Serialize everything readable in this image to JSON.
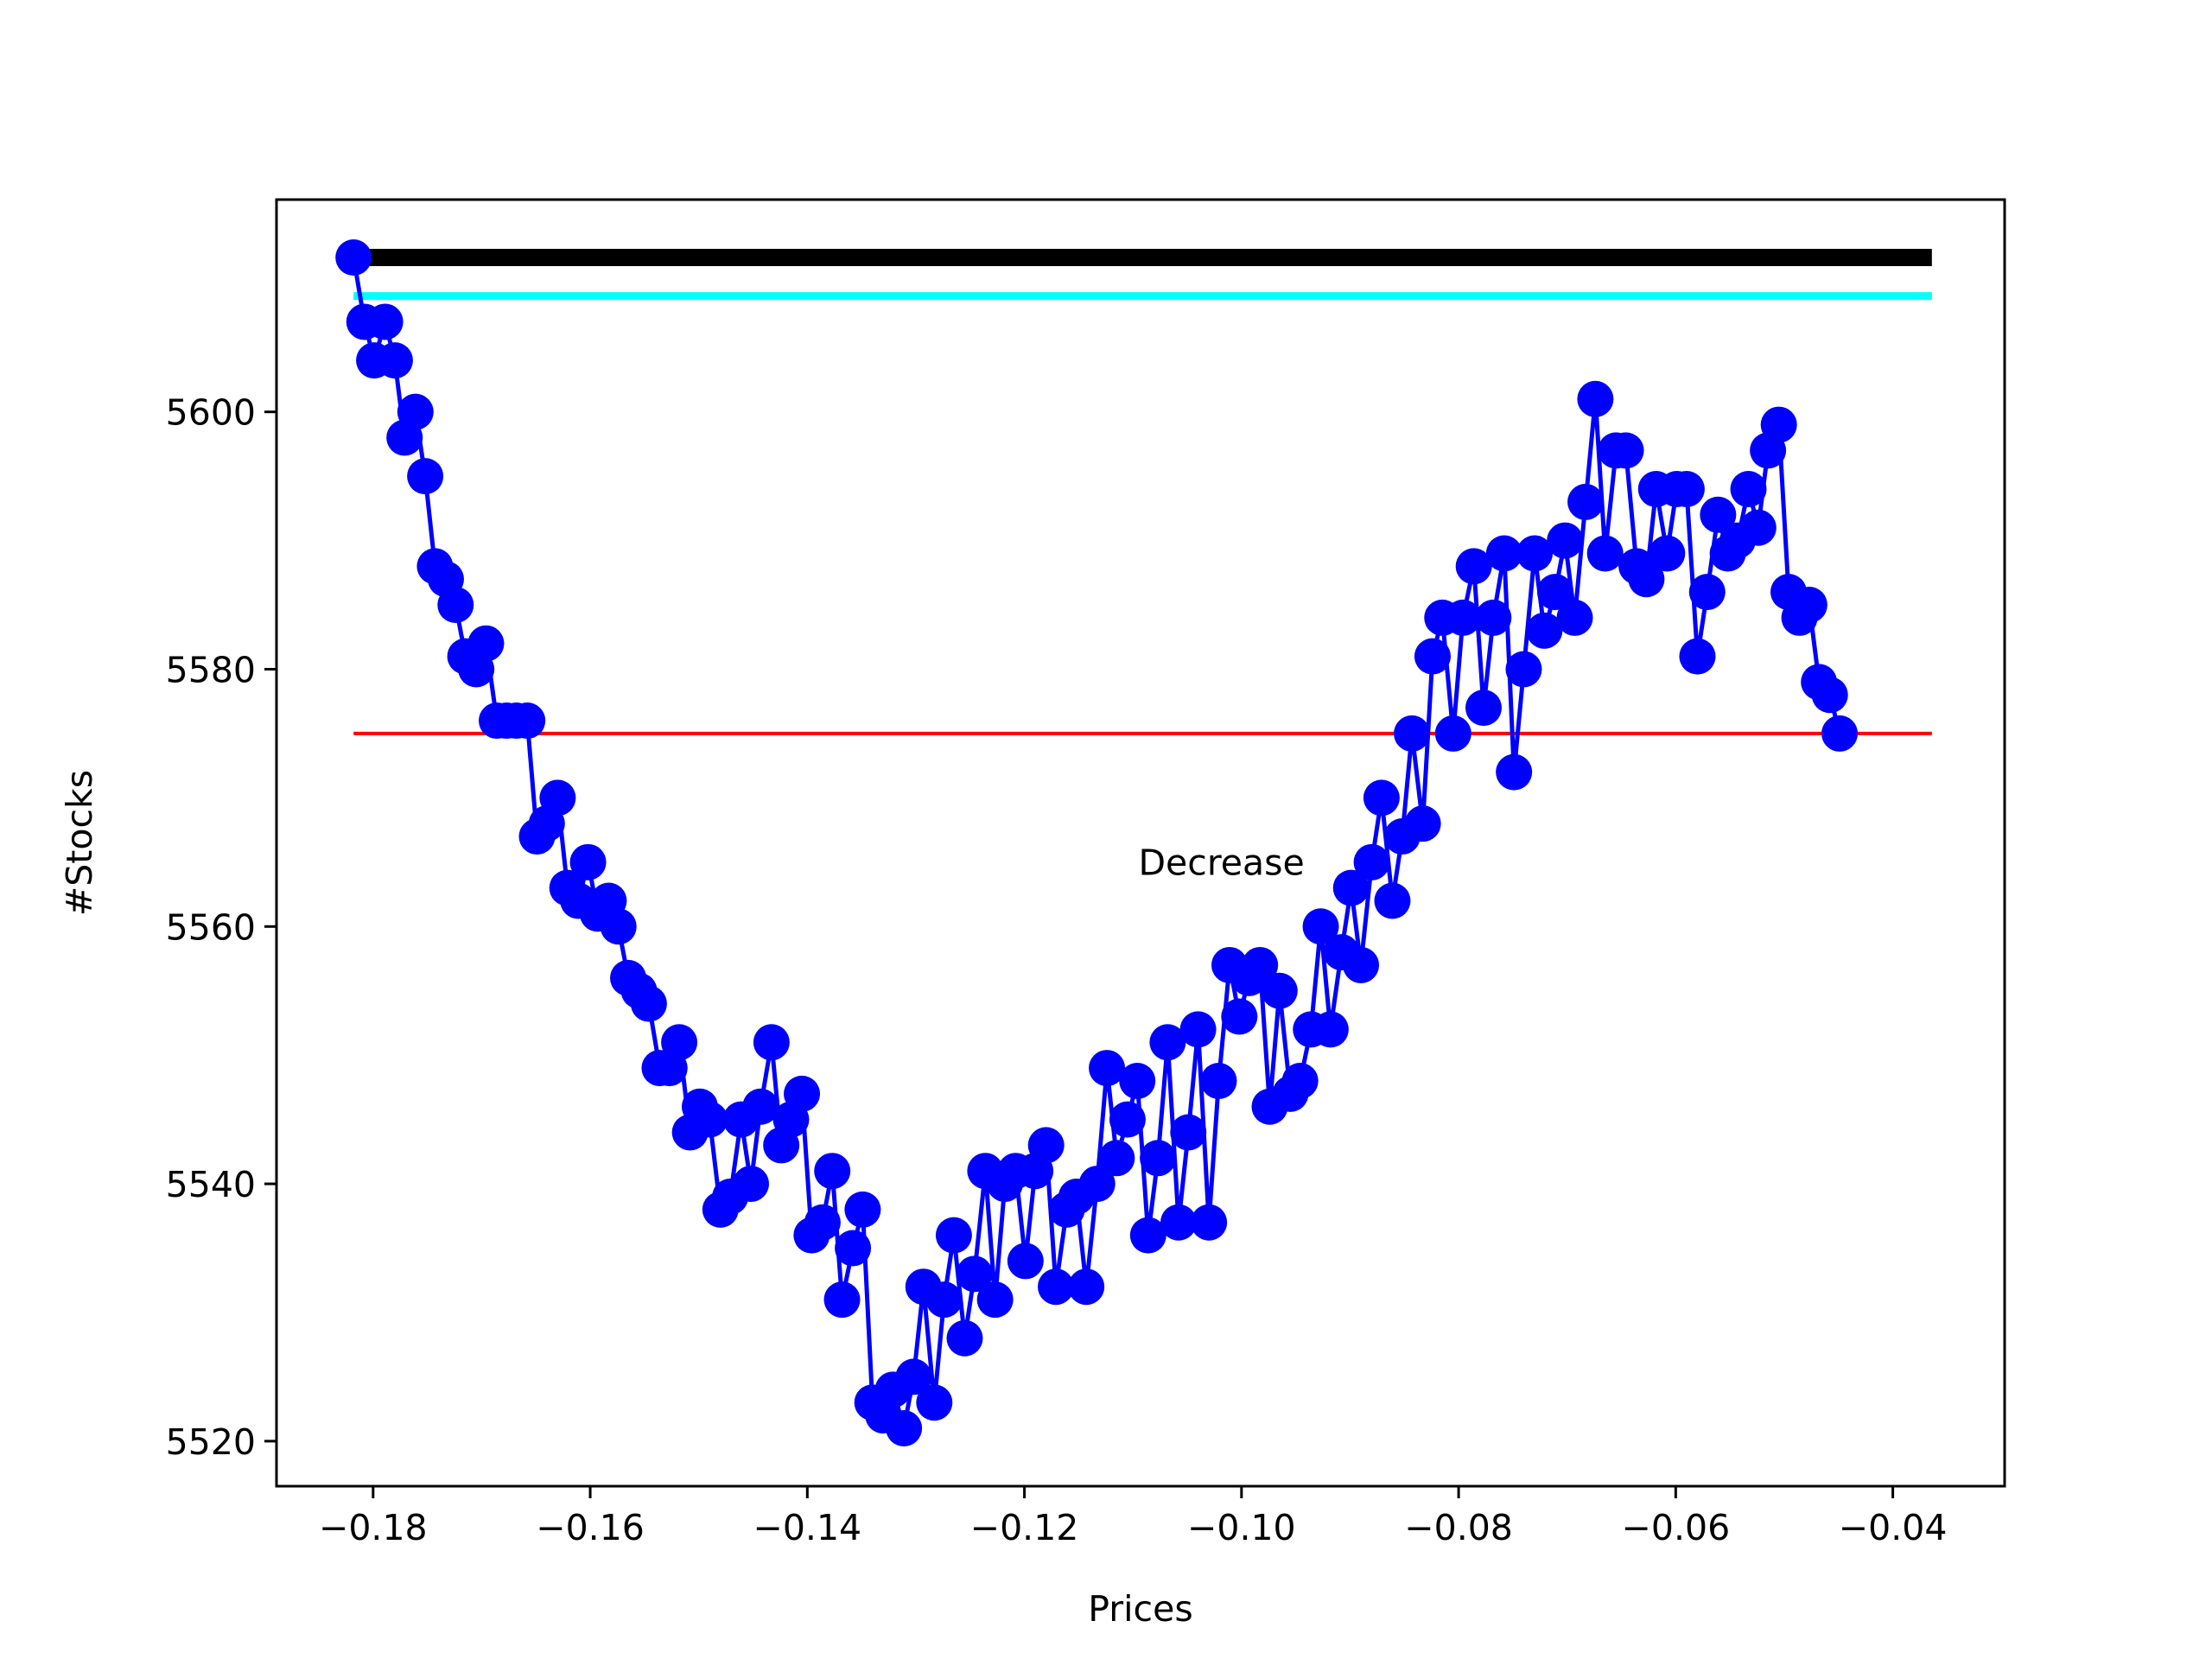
{
  "chart_data": {
    "type": "line",
    "title": "",
    "xlabel": "Prices",
    "ylabel": "#Stocks",
    "xlim": [
      -0.1889,
      -0.0297
    ],
    "ylim": [
      5516.5,
      5616.5
    ],
    "x_ticks": [
      -0.18,
      -0.16,
      -0.14,
      -0.12,
      -0.1,
      -0.08,
      -0.06,
      -0.04
    ],
    "x_tick_labels": [
      "−0.18",
      "−0.16",
      "−0.14",
      "−0.12",
      "−0.10",
      "−0.08",
      "−0.06",
      "−0.04"
    ],
    "y_ticks": [
      5520,
      5540,
      5560,
      5580,
      5600
    ],
    "y_tick_labels": [
      "5520",
      "5540",
      "5560",
      "5580",
      "5600"
    ],
    "grid": false,
    "legend": "none",
    "annotation": {
      "text": "Decrease",
      "x": -0.1095,
      "y": 5564.0
    },
    "hlines": [
      {
        "y": 5612,
        "x_from": -0.1818,
        "x_to": -0.0364,
        "color": "#000000",
        "width": "thick"
      },
      {
        "y": 5609,
        "x_from": -0.1818,
        "x_to": -0.0364,
        "color": "#00ffff",
        "width": "medium"
      },
      {
        "y": 5575,
        "x_from": -0.1818,
        "x_to": -0.0364,
        "color": "#ff0000",
        "width": "thin"
      }
    ],
    "series": [
      {
        "color": "#0000ff",
        "marker": "circle",
        "points": [
          [
            -0.1818,
            5612
          ],
          [
            -0.1808,
            5607
          ],
          [
            -0.1799,
            5604
          ],
          [
            -0.1789,
            5607
          ],
          [
            -0.178,
            5604
          ],
          [
            -0.1771,
            5598
          ],
          [
            -0.1761,
            5600
          ],
          [
            -0.1752,
            5595
          ],
          [
            -0.1743,
            5588
          ],
          [
            -0.1733,
            5587
          ],
          [
            -0.1724,
            5585
          ],
          [
            -0.1715,
            5581
          ],
          [
            -0.1705,
            5580
          ],
          [
            -0.1696,
            5582
          ],
          [
            -0.1686,
            5576
          ],
          [
            -0.1677,
            5576
          ],
          [
            -0.1668,
            5576
          ],
          [
            -0.1658,
            5576
          ],
          [
            -0.1649,
            5567
          ],
          [
            -0.164,
            5568
          ],
          [
            -0.163,
            5570
          ],
          [
            -0.1621,
            5563
          ],
          [
            -0.1611,
            5562
          ],
          [
            -0.1602,
            5565
          ],
          [
            -0.1593,
            5561
          ],
          [
            -0.1583,
            5562
          ],
          [
            -0.1574,
            5560
          ],
          [
            -0.1565,
            5556
          ],
          [
            -0.1555,
            5555
          ],
          [
            -0.1546,
            5554
          ],
          [
            -0.1536,
            5549
          ],
          [
            -0.1527,
            5549
          ],
          [
            -0.1518,
            5551
          ],
          [
            -0.1508,
            5544
          ],
          [
            -0.1499,
            5546
          ],
          [
            -0.149,
            5545
          ],
          [
            -0.148,
            5538
          ],
          [
            -0.1471,
            5539
          ],
          [
            -0.1461,
            5545
          ],
          [
            -0.1452,
            5540
          ],
          [
            -0.1443,
            5546
          ],
          [
            -0.1433,
            5551
          ],
          [
            -0.1424,
            5543
          ],
          [
            -0.1415,
            5545
          ],
          [
            -0.1405,
            5547
          ],
          [
            -0.1396,
            5536
          ],
          [
            -0.1386,
            5537
          ],
          [
            -0.1377,
            5541
          ],
          [
            -0.1368,
            5531
          ],
          [
            -0.1358,
            5535
          ],
          [
            -0.1349,
            5538
          ],
          [
            -0.134,
            5523
          ],
          [
            -0.133,
            5522
          ],
          [
            -0.1321,
            5524
          ],
          [
            -0.1311,
            5521
          ],
          [
            -0.1302,
            5525
          ],
          [
            -0.1293,
            5532
          ],
          [
            -0.1283,
            5523
          ],
          [
            -0.1274,
            5531
          ],
          [
            -0.1265,
            5536
          ],
          [
            -0.1255,
            5528
          ],
          [
            -0.1246,
            5533
          ],
          [
            -0.1236,
            5541
          ],
          [
            -0.1227,
            5531
          ],
          [
            -0.1218,
            5540
          ],
          [
            -0.1208,
            5541
          ],
          [
            -0.1199,
            5534
          ],
          [
            -0.119,
            5541
          ],
          [
            -0.118,
            5543
          ],
          [
            -0.1171,
            5532
          ],
          [
            -0.1161,
            5538
          ],
          [
            -0.1152,
            5539
          ],
          [
            -0.1143,
            5532
          ],
          [
            -0.1133,
            5540
          ],
          [
            -0.1124,
            5549
          ],
          [
            -0.1115,
            5542
          ],
          [
            -0.1105,
            5545
          ],
          [
            -0.1096,
            5548
          ],
          [
            -0.1086,
            5536
          ],
          [
            -0.1077,
            5542
          ],
          [
            -0.1068,
            5551
          ],
          [
            -0.1058,
            5537
          ],
          [
            -0.1049,
            5544
          ],
          [
            -0.104,
            5552
          ],
          [
            -0.103,
            5537
          ],
          [
            -0.1021,
            5548
          ],
          [
            -0.1011,
            5557
          ],
          [
            -0.1002,
            5553
          ],
          [
            -0.0993,
            5556
          ],
          [
            -0.0983,
            5557
          ],
          [
            -0.0974,
            5546
          ],
          [
            -0.0965,
            5555
          ],
          [
            -0.0955,
            5547
          ],
          [
            -0.0946,
            5548
          ],
          [
            -0.0936,
            5552
          ],
          [
            -0.0927,
            5560
          ],
          [
            -0.0918,
            5552
          ],
          [
            -0.0908,
            5558
          ],
          [
            -0.0899,
            5563
          ],
          [
            -0.089,
            5557
          ],
          [
            -0.088,
            5565
          ],
          [
            -0.0871,
            5570
          ],
          [
            -0.0861,
            5562
          ],
          [
            -0.0852,
            5567
          ],
          [
            -0.0843,
            5575
          ],
          [
            -0.0833,
            5568
          ],
          [
            -0.0824,
            5581
          ],
          [
            -0.0815,
            5584
          ],
          [
            -0.0805,
            5575
          ],
          [
            -0.0796,
            5584
          ],
          [
            -0.0786,
            5588
          ],
          [
            -0.0777,
            5577
          ],
          [
            -0.0768,
            5584
          ],
          [
            -0.0758,
            5589
          ],
          [
            -0.0749,
            5572
          ],
          [
            -0.074,
            5580
          ],
          [
            -0.073,
            5589
          ],
          [
            -0.0721,
            5583
          ],
          [
            -0.0711,
            5586
          ],
          [
            -0.0702,
            5590
          ],
          [
            -0.0693,
            5584
          ],
          [
            -0.0683,
            5593
          ],
          [
            -0.0674,
            5601
          ],
          [
            -0.0665,
            5589
          ],
          [
            -0.0655,
            5597
          ],
          [
            -0.0646,
            5597
          ],
          [
            -0.0636,
            5588
          ],
          [
            -0.0627,
            5587
          ],
          [
            -0.0618,
            5594
          ],
          [
            -0.0608,
            5589
          ],
          [
            -0.0599,
            5594
          ],
          [
            -0.059,
            5594
          ],
          [
            -0.058,
            5581
          ],
          [
            -0.0571,
            5586
          ],
          [
            -0.0561,
            5592
          ],
          [
            -0.0552,
            5589
          ],
          [
            -0.0543,
            5590
          ],
          [
            -0.0533,
            5594
          ],
          [
            -0.0524,
            5591
          ],
          [
            -0.0515,
            5597
          ],
          [
            -0.0505,
            5599
          ],
          [
            -0.0496,
            5586
          ],
          [
            -0.0486,
            5584
          ],
          [
            -0.0477,
            5585
          ],
          [
            -0.0468,
            5579
          ],
          [
            -0.0458,
            5578
          ],
          [
            -0.0449,
            5575
          ]
        ]
      }
    ]
  }
}
